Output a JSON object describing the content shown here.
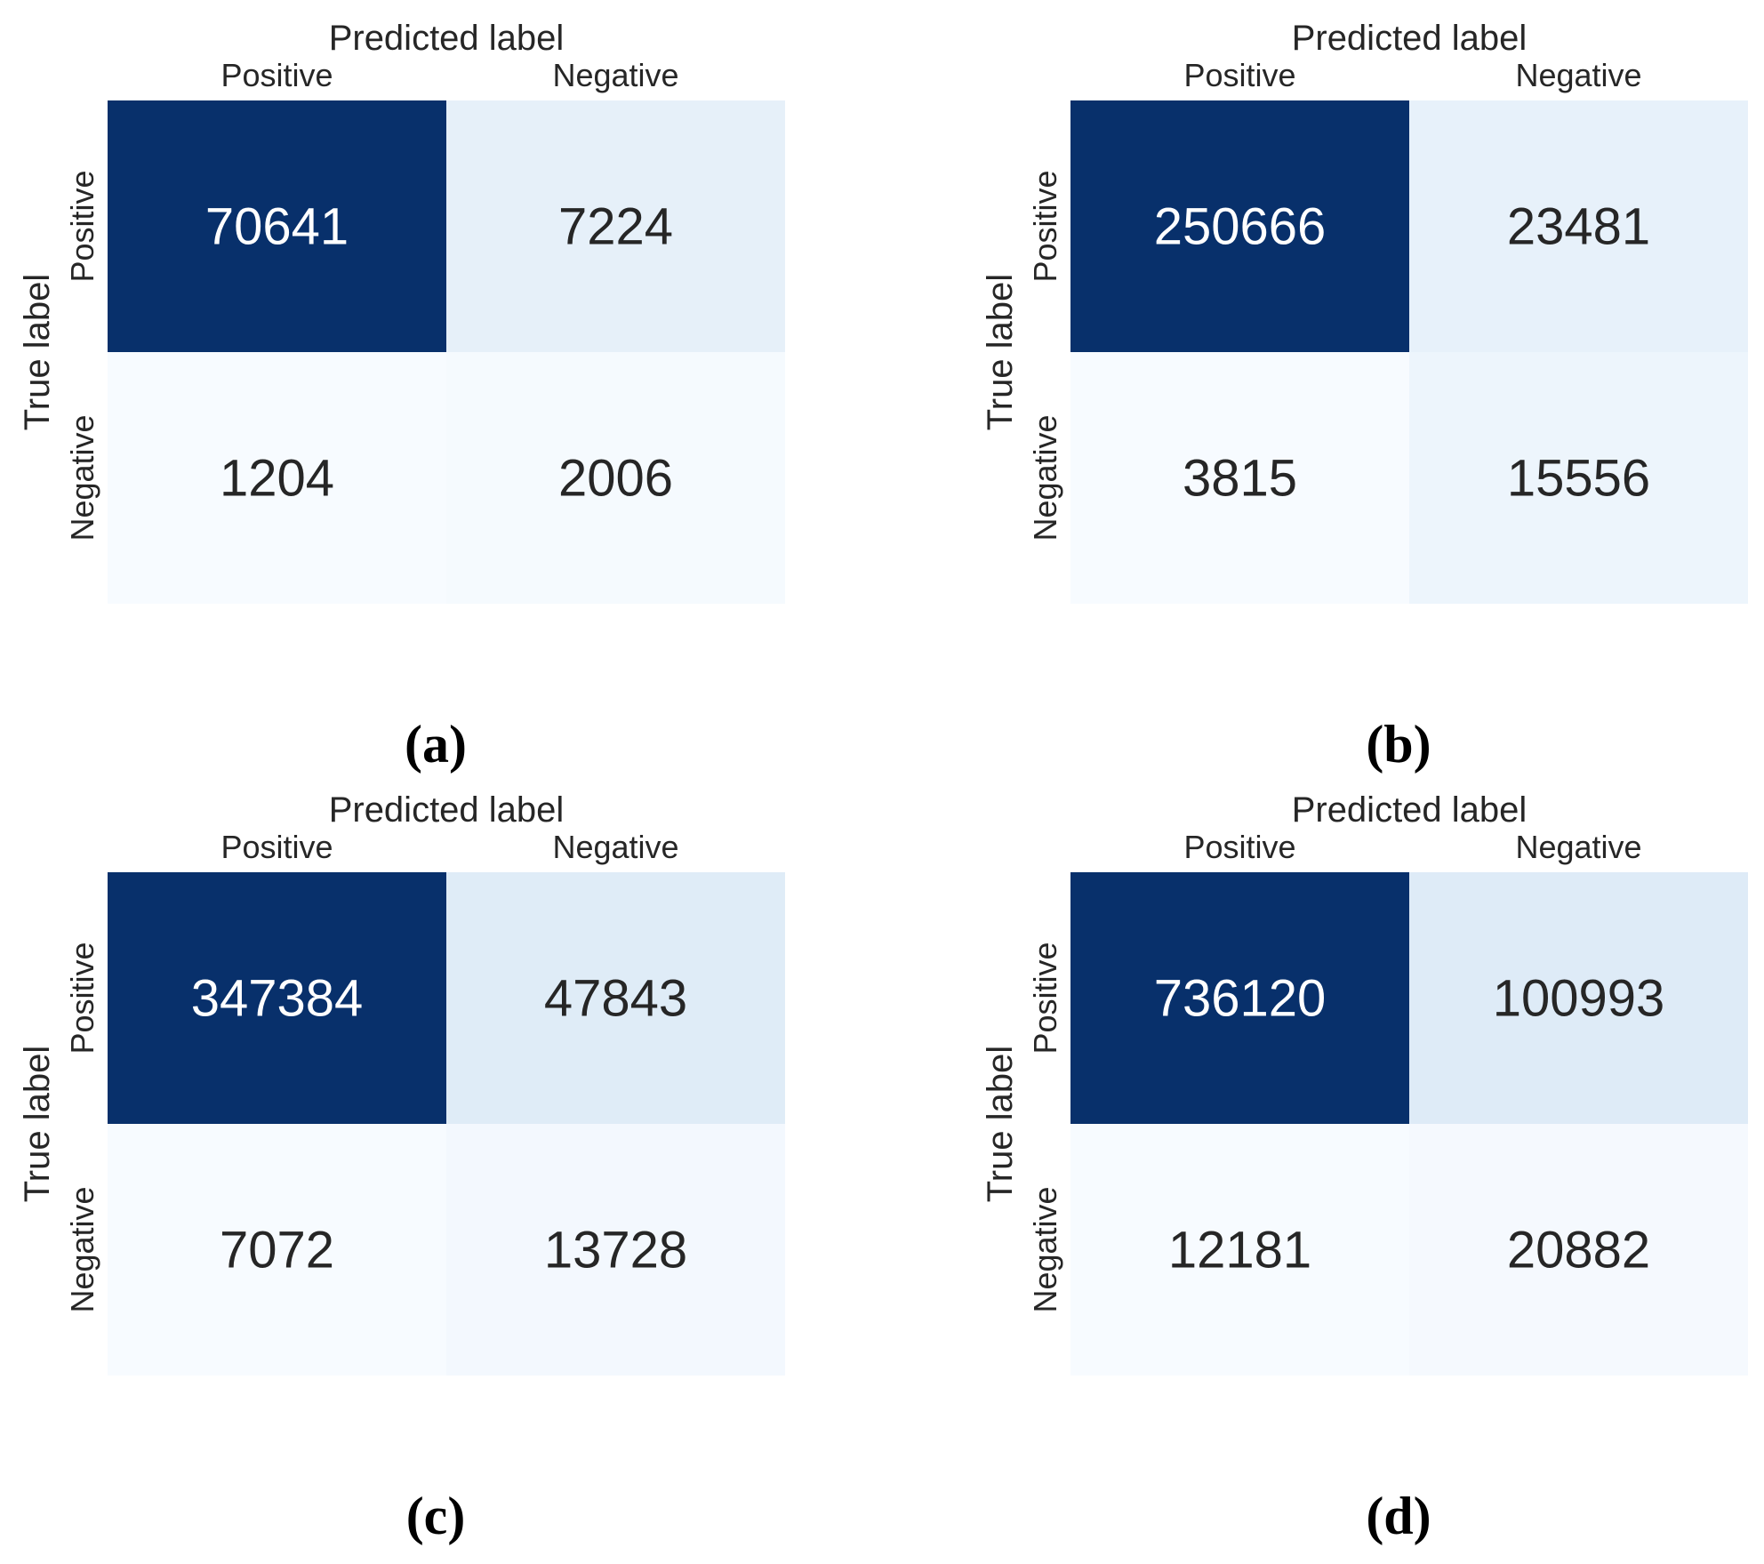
{
  "chart_data": [
    {
      "type": "heatmap",
      "caption": "(a)",
      "xlabel": "Predicted label",
      "ylabel": "True label",
      "x_categories": [
        "Positive",
        "Negative"
      ],
      "y_categories": [
        "Positive",
        "Negative"
      ],
      "values": [
        [
          70641,
          7224
        ],
        [
          1204,
          2006
        ]
      ],
      "colormap": "Blues",
      "colorbar": false
    },
    {
      "type": "heatmap",
      "caption": "(b)",
      "xlabel": "Predicted label",
      "ylabel": "True label",
      "x_categories": [
        "Positive",
        "Negative"
      ],
      "y_categories": [
        "Positive",
        "Negative"
      ],
      "values": [
        [
          250666,
          23481
        ],
        [
          3815,
          15556
        ]
      ],
      "colormap": "Blues",
      "colorbar": false
    },
    {
      "type": "heatmap",
      "caption": "(c)",
      "xlabel": "Predicted label",
      "ylabel": "True label",
      "x_categories": [
        "Positive",
        "Negative"
      ],
      "y_categories": [
        "Positive",
        "Negative"
      ],
      "values": [
        [
          347384,
          47843
        ],
        [
          7072,
          13728
        ]
      ],
      "colormap": "Blues",
      "colorbar": false
    },
    {
      "type": "heatmap",
      "caption": "(d)",
      "xlabel": "Predicted label",
      "ylabel": "True label",
      "x_categories": [
        "Positive",
        "Negative"
      ],
      "y_categories": [
        "Positive",
        "Negative"
      ],
      "values": [
        [
          736120,
          100993
        ],
        [
          12181,
          20882
        ]
      ],
      "colormap": "Blues",
      "colorbar": false
    }
  ]
}
